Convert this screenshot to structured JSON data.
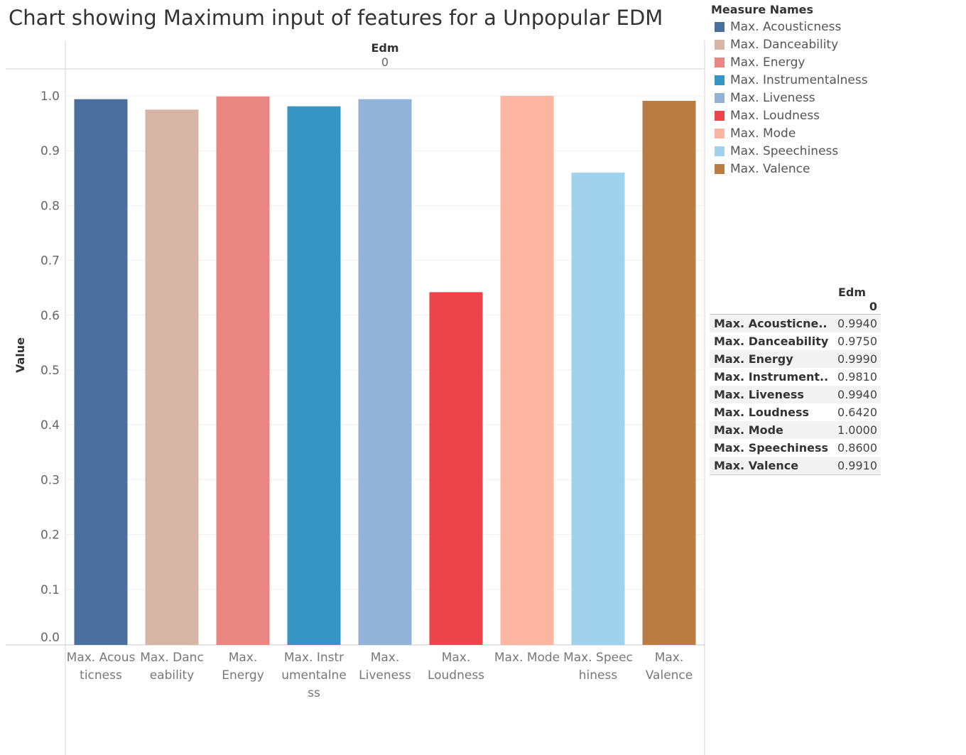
{
  "title": "Chart showing Maximum input of features for a Unpopular EDM",
  "chart_data": {
    "type": "bar",
    "title": "Chart showing Maximum input of features for a Unpopular EDM",
    "column_header": "Edm",
    "column_subheader": "0",
    "ylabel": "Value",
    "xlabel": "",
    "ylim": [
      0,
      1.0
    ],
    "yticks": [
      "0.0",
      "0.1",
      "0.2",
      "0.3",
      "0.4",
      "0.5",
      "0.6",
      "0.7",
      "0.8",
      "0.9",
      "1.0"
    ],
    "grid": true,
    "legend_position": "right",
    "categories": [
      {
        "label_lines": [
          "Max. Acous",
          "ticness"
        ]
      },
      {
        "label_lines": [
          "Max. Danc",
          "eability"
        ]
      },
      {
        "label_lines": [
          "Max.",
          "Energy"
        ]
      },
      {
        "label_lines": [
          "Max. Instr",
          "umentalne",
          "ss"
        ]
      },
      {
        "label_lines": [
          "Max.",
          "Liveness"
        ]
      },
      {
        "label_lines": [
          "Max.",
          "Loudness"
        ]
      },
      {
        "label_lines": [
          "Max. Mode"
        ]
      },
      {
        "label_lines": [
          "Max. Speec",
          "hiness"
        ]
      },
      {
        "label_lines": [
          "Max.",
          "Valence"
        ]
      }
    ],
    "values": [
      0.994,
      0.975,
      0.999,
      0.981,
      0.994,
      0.642,
      1.0,
      0.86,
      0.991
    ],
    "colors": [
      "#4a6f9c",
      "#d7b5a6",
      "#ea8682",
      "#3795c4",
      "#92b3d7",
      "#ed444a",
      "#feb5a2",
      "#a0d2ee",
      "#b97d44"
    ]
  },
  "legend": {
    "title": "Measure Names",
    "items": [
      {
        "label": "Max. Acousticness",
        "color": "#4a6f9c"
      },
      {
        "label": "Max. Danceability",
        "color": "#d7b5a6"
      },
      {
        "label": "Max. Energy",
        "color": "#ea8682"
      },
      {
        "label": "Max. Instrumentalness",
        "color": "#3795c4"
      },
      {
        "label": "Max. Liveness",
        "color": "#92b3d7"
      },
      {
        "label": "Max. Loudness",
        "color": "#ed444a"
      },
      {
        "label": "Max. Mode",
        "color": "#feb5a2"
      },
      {
        "label": "Max. Speechiness",
        "color": "#a0d2ee"
      },
      {
        "label": "Max. Valence",
        "color": "#b97d44"
      }
    ]
  },
  "table": {
    "header": "Edm",
    "subheader": "0",
    "rows": [
      {
        "name": "Max. Acousticne..",
        "value": "0.9940"
      },
      {
        "name": "Max. Danceability",
        "value": "0.9750"
      },
      {
        "name": "Max. Energy",
        "value": "0.9990"
      },
      {
        "name": "Max. Instrument..",
        "value": "0.9810"
      },
      {
        "name": "Max. Liveness",
        "value": "0.9940"
      },
      {
        "name": "Max. Loudness",
        "value": "0.6420"
      },
      {
        "name": "Max. Mode",
        "value": "1.0000"
      },
      {
        "name": "Max. Speechiness",
        "value": "0.8600"
      },
      {
        "name": "Max. Valence",
        "value": "0.9910"
      }
    ]
  }
}
